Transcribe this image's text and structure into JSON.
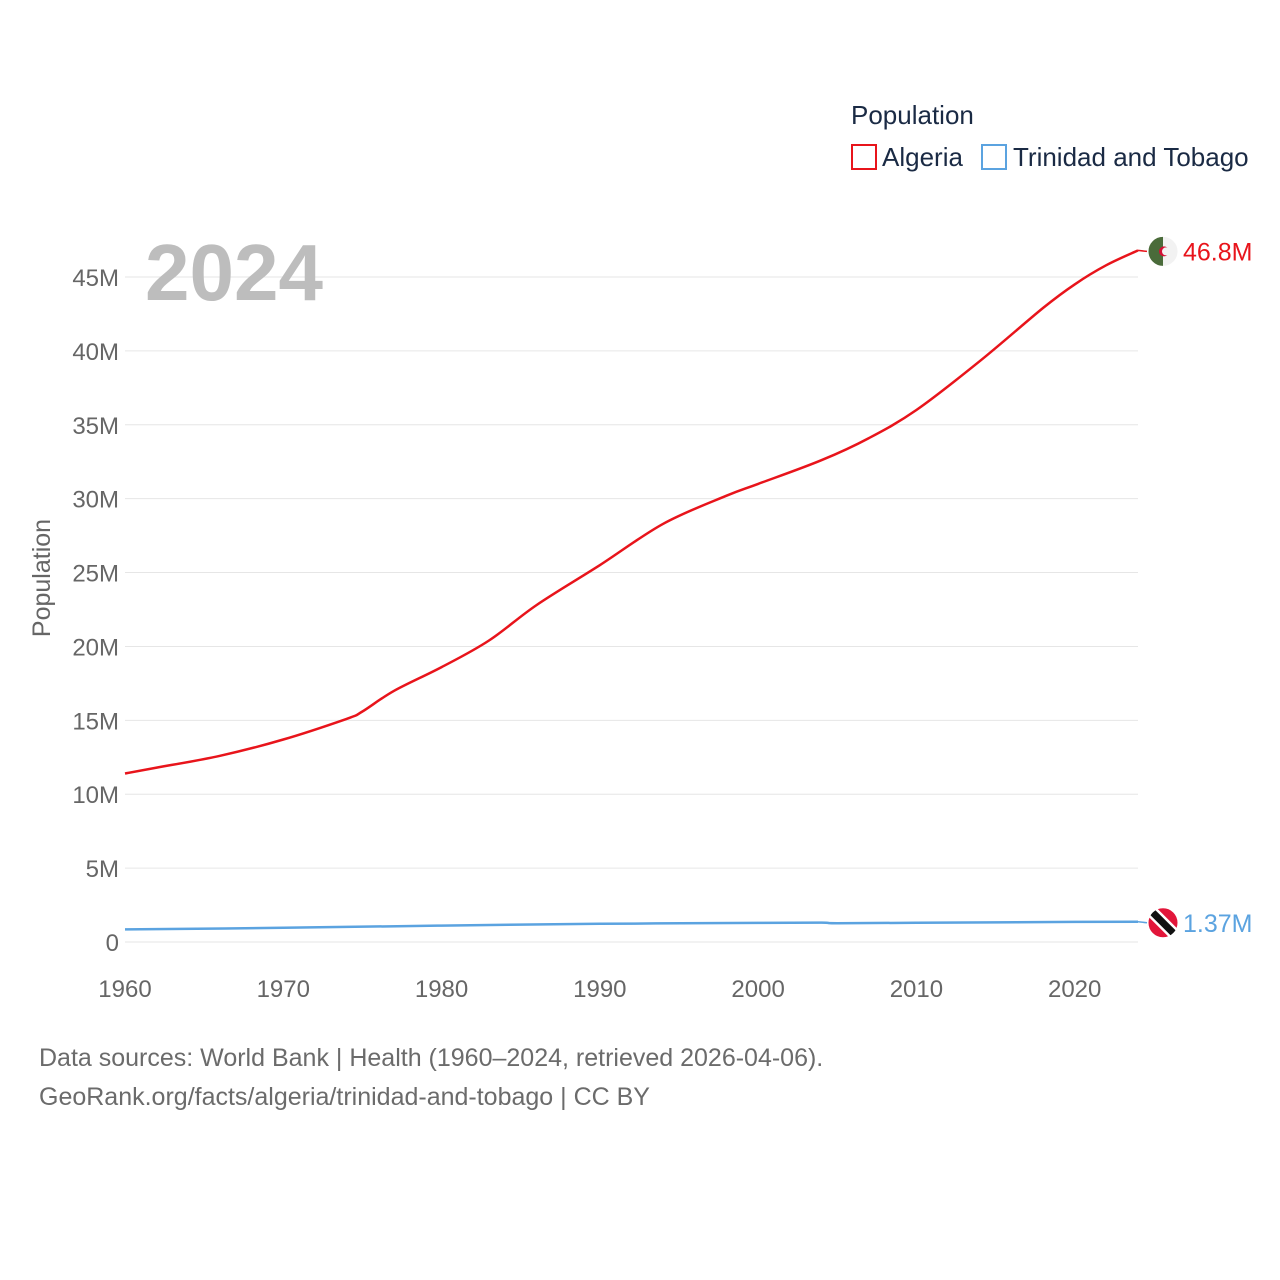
{
  "chart_data": {
    "type": "line",
    "title": "Population",
    "legend_title": "Population",
    "current_year": "2024",
    "ylabel": "Population",
    "xlabel": "",
    "xlim": [
      1960,
      2024
    ],
    "ylim": [
      0,
      45000000
    ],
    "x_ticks": [
      1960,
      1970,
      1980,
      1990,
      2000,
      2010,
      2020
    ],
    "x_tick_labels": [
      "1960",
      "1970",
      "1980",
      "1990",
      "2000",
      "2010",
      "2020"
    ],
    "y_ticks": [
      0,
      5000000,
      10000000,
      15000000,
      20000000,
      25000000,
      30000000,
      35000000,
      40000000,
      45000000
    ],
    "y_tick_labels": [
      "0",
      "5M",
      "10M",
      "15M",
      "20M",
      "25M",
      "30M",
      "35M",
      "40M",
      "45M"
    ],
    "grid": true,
    "series": [
      {
        "name": "Algeria",
        "color": "#e8141b",
        "end_label": "46.8M",
        "flag": "algeria-flag",
        "points": [
          [
            1960,
            11400000
          ],
          [
            1962,
            11800000
          ],
          [
            1966,
            12600000
          ],
          [
            1970,
            13700000
          ],
          [
            1974,
            15100000
          ],
          [
            1975,
            15600000
          ],
          [
            1977,
            17000000
          ],
          [
            1980,
            18600000
          ],
          [
            1983,
            20400000
          ],
          [
            1986,
            22800000
          ],
          [
            1990,
            25500000
          ],
          [
            1994,
            28300000
          ],
          [
            1998,
            30200000
          ],
          [
            2000,
            31000000
          ],
          [
            2004,
            32600000
          ],
          [
            2007,
            34100000
          ],
          [
            2010,
            36000000
          ],
          [
            2014,
            39300000
          ],
          [
            2018,
            42900000
          ],
          [
            2020,
            44500000
          ],
          [
            2022,
            45800000
          ],
          [
            2024,
            46800000
          ]
        ]
      },
      {
        "name": "Trinidad and Tobago",
        "color": "#5ba3e0",
        "end_label": "1.37M",
        "flag": "trinidad-and-tobago-flag",
        "points": [
          [
            1960,
            850000
          ],
          [
            1970,
            960000
          ],
          [
            1980,
            1110000
          ],
          [
            1990,
            1230000
          ],
          [
            2000,
            1290000
          ],
          [
            2004,
            1310000
          ],
          [
            2005,
            1270000
          ],
          [
            2010,
            1300000
          ],
          [
            2020,
            1360000
          ],
          [
            2024,
            1370000
          ]
        ]
      }
    ]
  },
  "footer": {
    "line1": "Data sources: World Bank | Health (1960–2024, retrieved 2026-04-06).",
    "line2": "GeoRank.org/facts/algeria/trinidad-and-tobago | CC BY"
  }
}
